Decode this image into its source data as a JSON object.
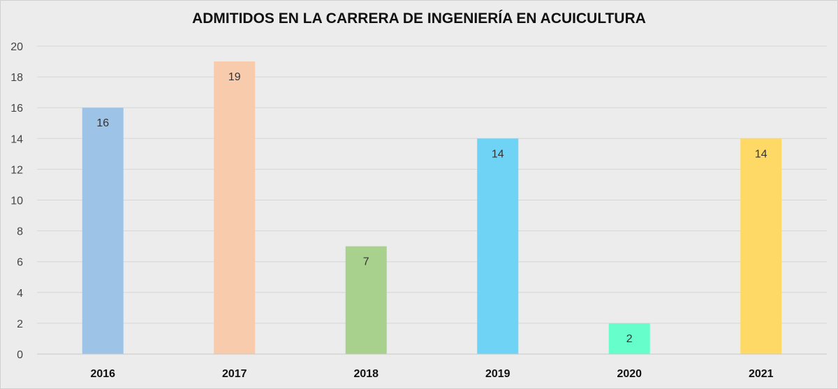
{
  "chart_data": {
    "type": "bar",
    "title": "ADMITIDOS EN LA CARRERA DE INGENIERÍA EN ACUICULTURA",
    "categories": [
      "2016",
      "2017",
      "2018",
      "2019",
      "2020",
      "2021"
    ],
    "values": [
      16,
      19,
      7,
      14,
      2,
      14
    ],
    "colors": [
      "#9dc3e6",
      "#f8cbad",
      "#a9d18e",
      "#6fd3f5",
      "#66ffcc",
      "#ffd966"
    ],
    "ylim": [
      0,
      20
    ],
    "yticks": [
      0,
      2,
      4,
      6,
      8,
      10,
      12,
      14,
      16,
      18,
      20
    ],
    "grid": true,
    "data_labels": true,
    "xlabel": "",
    "ylabel": ""
  }
}
